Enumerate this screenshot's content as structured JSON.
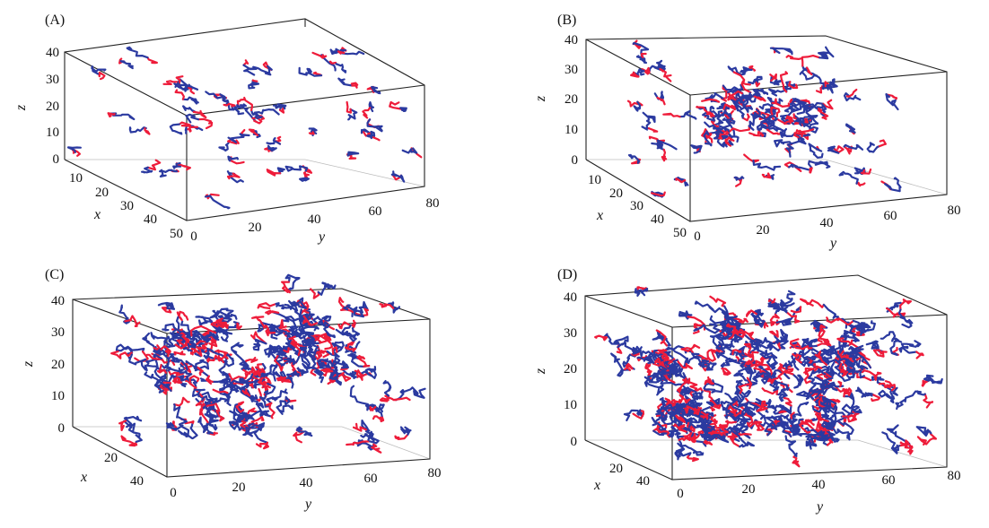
{
  "colors": {
    "blue": "#2b3aa0",
    "red": "#ee1c3a"
  },
  "chart_data": [
    {
      "panel_label": "(A)",
      "type": "scatter",
      "xlabel": "x",
      "ylabel": "y",
      "zlabel": "z",
      "xlim": [
        0,
        50
      ],
      "ylim": [
        0,
        80
      ],
      "zlim": [
        0,
        40
      ],
      "xticks": [
        "10",
        "20",
        "30",
        "40",
        "50"
      ],
      "yticks": [
        "0",
        "20",
        "40",
        "60",
        "80"
      ],
      "zticks": [
        "0",
        "10",
        "20",
        "30",
        "40"
      ],
      "density": "sparse"
    },
    {
      "panel_label": "(B)",
      "type": "scatter",
      "xlabel": "x",
      "ylabel": "y",
      "zlabel": "z",
      "xlim": [
        0,
        50
      ],
      "ylim": [
        0,
        80
      ],
      "zlim": [
        0,
        40
      ],
      "xticks": [
        "10",
        "20",
        "30",
        "40",
        "50"
      ],
      "yticks": [
        "0",
        "20",
        "40",
        "60",
        "80"
      ],
      "zticks": [
        "0",
        "10",
        "20",
        "30",
        "40"
      ],
      "density": "moderate"
    },
    {
      "panel_label": "(C)",
      "type": "scatter",
      "xlabel": "x",
      "ylabel": "y",
      "zlabel": "z",
      "xlim": [
        0,
        40
      ],
      "ylim": [
        0,
        80
      ],
      "zlim": [
        0,
        40
      ],
      "xticks": [
        "20",
        "40"
      ],
      "yticks": [
        "0",
        "20",
        "40",
        "60",
        "80"
      ],
      "zticks": [
        "0",
        "10",
        "20",
        "30",
        "40"
      ],
      "density": "dense"
    },
    {
      "panel_label": "(D)",
      "type": "scatter",
      "xlabel": "x",
      "ylabel": "y",
      "zlabel": "z",
      "xlim": [
        0,
        40
      ],
      "ylim": [
        0,
        80
      ],
      "zlim": [
        0,
        40
      ],
      "xticks": [
        "20",
        "40"
      ],
      "yticks": [
        "0",
        "20",
        "40",
        "60",
        "80"
      ],
      "zticks": [
        "0",
        "10",
        "20",
        "30",
        "40"
      ],
      "density": "very dense"
    }
  ]
}
